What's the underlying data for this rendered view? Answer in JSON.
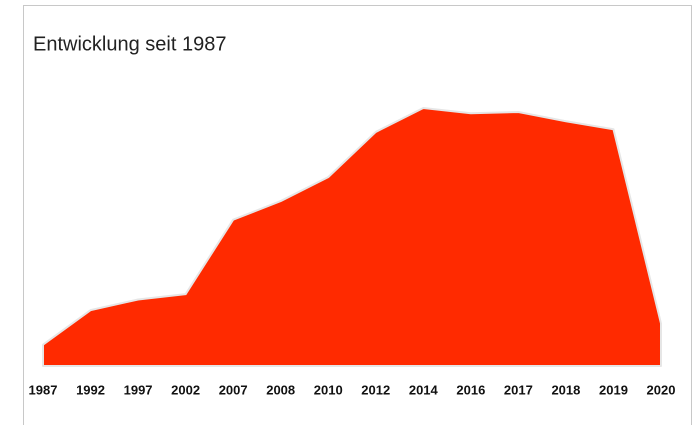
{
  "chart_data": {
    "type": "area",
    "title": "Entwicklung seit 1987",
    "categories": [
      "1987",
      "1992",
      "1997",
      "2002",
      "2007",
      "2008",
      "2010",
      "2012",
      "2014",
      "2016",
      "2017",
      "2018",
      "2019",
      "2020"
    ],
    "values": [
      8,
      21,
      25,
      27,
      55,
      62,
      71,
      88,
      97,
      95,
      95.5,
      92,
      89,
      16
    ],
    "color": "#ff2a00",
    "ylim": [
      0,
      100
    ]
  }
}
